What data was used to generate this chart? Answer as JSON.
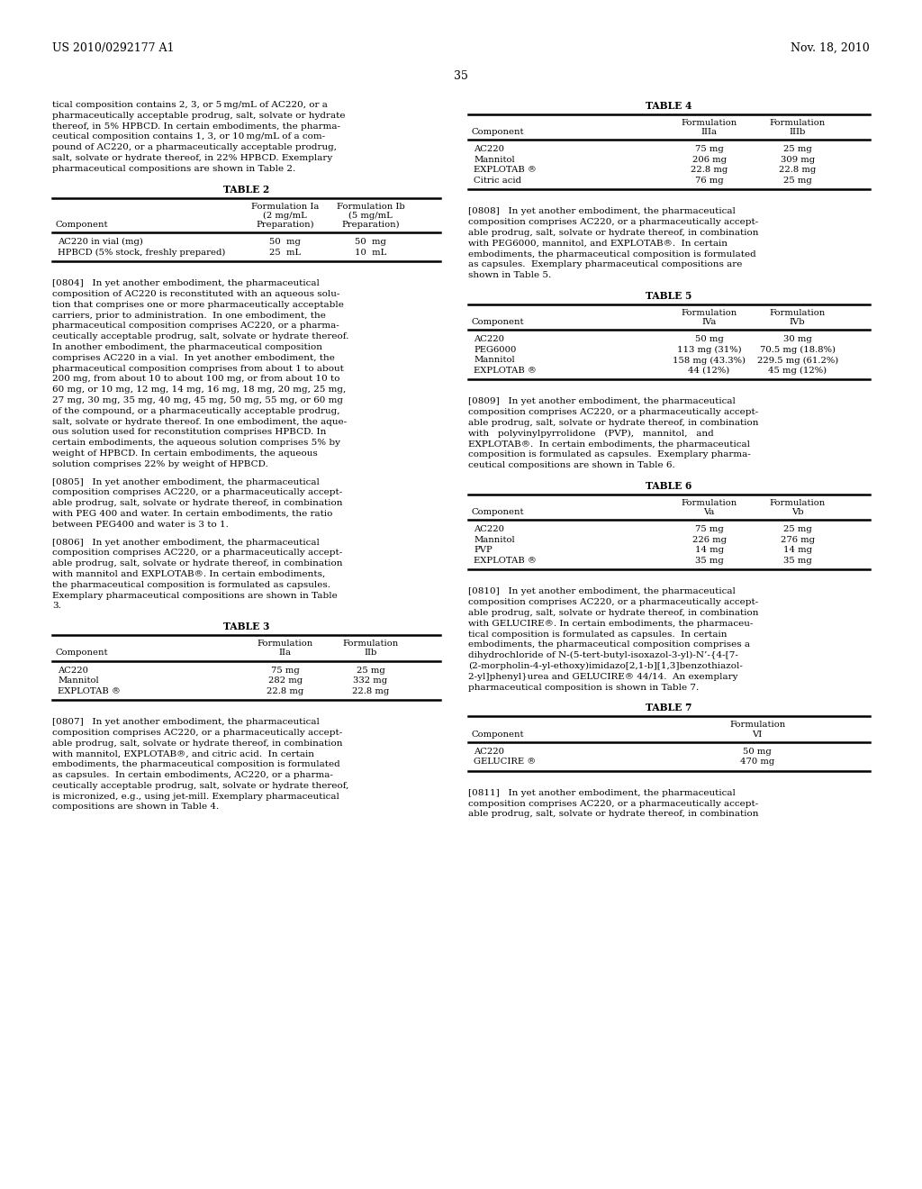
{
  "background_color": "#ffffff",
  "header_left": "US 2010/0292177 A1",
  "header_right": "Nov. 18, 2010",
  "page_number": "35",
  "left_column": {
    "intro_text": [
      "tical composition contains 2, 3, or 5 mg/mL of AC220, or a",
      "pharmaceutically acceptable prodrug, salt, solvate or hydrate",
      "thereof, in 5% HPBCD. In certain embodiments, the pharma-",
      "ceutical composition contains 1, 3, or 10 mg/mL of a com-",
      "pound of AC220, or a pharmaceutically acceptable prodrug,",
      "salt, solvate or hydrate thereof, in 22% HPBCD. Exemplary",
      "pharmaceutical compositions are shown in Table 2."
    ],
    "table2": {
      "title": "TABLE 2",
      "col_headers": [
        "Component",
        "Formulation Ia\n(2 mg/mL\nPreparation)",
        "Formulation Ib\n(5 mg/mL\nPreparation)"
      ],
      "rows": [
        [
          "AC220 in vial (mg)",
          "50  mg",
          "50  mg"
        ],
        [
          "HPBCD (5% stock, freshly prepared)",
          "25  mL",
          "10  mL"
        ]
      ]
    },
    "para_0804": [
      "[0804]   In yet another embodiment, the pharmaceutical",
      "composition of AC220 is reconstituted with an aqueous solu-",
      "tion that comprises one or more pharmaceutically acceptable",
      "carriers, prior to administration.  In one embodiment, the",
      "pharmaceutical composition comprises AC220, or a pharma-",
      "ceutically acceptable prodrug, salt, solvate or hydrate thereof.",
      "In another embodiment, the pharmaceutical composition",
      "comprises AC220 in a vial.  In yet another embodiment, the",
      "pharmaceutical composition comprises from about 1 to about",
      "200 mg, from about 10 to about 100 mg, or from about 10 to",
      "60 mg, or 10 mg, 12 mg, 14 mg, 16 mg, 18 mg, 20 mg, 25 mg,",
      "27 mg, 30 mg, 35 mg, 40 mg, 45 mg, 50 mg, 55 mg, or 60 mg",
      "of the compound, or a pharmaceutically acceptable prodrug,",
      "salt, solvate or hydrate thereof. In one embodiment, the aque-",
      "ous solution used for reconstitution comprises HPBCD. In",
      "certain embodiments, the aqueous solution comprises 5% by",
      "weight of HPBCD. In certain embodiments, the aqueous",
      "solution comprises 22% by weight of HPBCD."
    ],
    "para_0805": [
      "[0805]   In yet another embodiment, the pharmaceutical",
      "composition comprises AC220, or a pharmaceutically accept-",
      "able prodrug, salt, solvate or hydrate thereof, in combination",
      "with PEG 400 and water. In certain embodiments, the ratio",
      "between PEG400 and water is 3 to 1."
    ],
    "para_0806": [
      "[0806]   In yet another embodiment, the pharmaceutical",
      "composition comprises AC220, or a pharmaceutically accept-",
      "able prodrug, salt, solvate or hydrate thereof, in combination",
      "with mannitol and EXPLOTAB®. In certain embodiments,",
      "the pharmaceutical composition is formulated as capsules.",
      "Exemplary pharmaceutical compositions are shown in Table",
      "3."
    ],
    "table3": {
      "title": "TABLE 3",
      "col_headers": [
        "Component",
        "Formulation\nIIa",
        "Formulation\nIIb"
      ],
      "rows": [
        [
          "AC220",
          "75 mg",
          "25 mg"
        ],
        [
          "Mannitol",
          "282 mg",
          "332 mg"
        ],
        [
          "EXPLOTAB ®",
          "22.8 mg",
          "22.8 mg"
        ]
      ]
    },
    "para_0807": [
      "[0807]   In yet another embodiment, the pharmaceutical",
      "composition comprises AC220, or a pharmaceutically accept-",
      "able prodrug, salt, solvate or hydrate thereof, in combination",
      "with mannitol, EXPLOTAB®, and citric acid.  In certain",
      "embodiments, the pharmaceutical composition is formulated",
      "as capsules.  In certain embodiments, AC220, or a pharma-",
      "ceutically acceptable prodrug, salt, solvate or hydrate thereof,",
      "is micronized, e.g., using jet-mill. Exemplary pharmaceutical",
      "compositions are shown in Table 4."
    ]
  },
  "right_column": {
    "table4": {
      "title": "TABLE 4",
      "col_headers": [
        "Component",
        "Formulation\nIIIa",
        "Formulation\nIIIb"
      ],
      "rows": [
        [
          "AC220",
          "75 mg",
          "25 mg"
        ],
        [
          "Mannitol",
          "206 mg",
          "309 mg"
        ],
        [
          "EXPLOTAB ®",
          "22.8 mg",
          "22.8 mg"
        ],
        [
          "Citric acid",
          "76 mg",
          "25 mg"
        ]
      ]
    },
    "para_0808": [
      "[0808]   In yet another embodiment, the pharmaceutical",
      "composition comprises AC220, or a pharmaceutically accept-",
      "able prodrug, salt, solvate or hydrate thereof, in combination",
      "with PEG6000, mannitol, and EXPLOTAB®.  In certain",
      "embodiments, the pharmaceutical composition is formulated",
      "as capsules.  Exemplary pharmaceutical compositions are",
      "shown in Table 5."
    ],
    "table5": {
      "title": "TABLE 5",
      "col_headers": [
        "Component",
        "Formulation\nIVa",
        "Formulation\nIVb"
      ],
      "rows": [
        [
          "AC220",
          "50 mg",
          "30 mg"
        ],
        [
          "PEG6000",
          "113 mg (31%)",
          "70.5 mg (18.8%)"
        ],
        [
          "Mannitol",
          "158 mg (43.3%)",
          "229.5 mg (61.2%)"
        ],
        [
          "EXPLOTAB ®",
          "44 (12%)",
          "45 mg (12%)"
        ]
      ]
    },
    "para_0809": [
      "[0809]   In yet another embodiment, the pharmaceutical",
      "composition comprises AC220, or a pharmaceutically accept-",
      "able prodrug, salt, solvate or hydrate thereof, in combination",
      "with   polyvinylpyrrolidone   (PVP),   mannitol,   and",
      "EXPLOTAB®.  In certain embodiments, the pharmaceutical",
      "composition is formulated as capsules.  Exemplary pharma-",
      "ceutical compositions are shown in Table 6."
    ],
    "table6": {
      "title": "TABLE 6",
      "col_headers": [
        "Component",
        "Formulation\nVa",
        "Formulation\nVb"
      ],
      "rows": [
        [
          "AC220",
          "75 mg",
          "25 mg"
        ],
        [
          "Mannitol",
          "226 mg",
          "276 mg"
        ],
        [
          "PVP",
          "14 mg",
          "14 mg"
        ],
        [
          "EXPLOTAB ®",
          "35 mg",
          "35 mg"
        ]
      ]
    },
    "para_0810": [
      "[0810]   In yet another embodiment, the pharmaceutical",
      "composition comprises AC220, or a pharmaceutically accept-",
      "able prodrug, salt, solvate or hydrate thereof, in combination",
      "with GELUCIRE®. In certain embodiments, the pharmaceu-",
      "tical composition is formulated as capsules.  In certain",
      "embodiments, the pharmaceutical composition comprises a",
      "dihydrochloride of N-(5-tert-butyl-isoxazol-3-yl)-N’-{4-[7-",
      "(2-morpholin-4-yl-ethoxy)imidazo[2,1-b][1,3]benzothiazol-",
      "2-yl]phenyl}urea and GELUCIRE® 44/14.  An exemplary",
      "pharmaceutical composition is shown in Table 7."
    ],
    "table7": {
      "title": "TABLE 7",
      "col_headers": [
        "Component",
        "Formulation\nVI"
      ],
      "rows": [
        [
          "AC220",
          "50 mg"
        ],
        [
          "GELUCIRE ®",
          "470 mg"
        ]
      ]
    },
    "para_0811": [
      "[0811]   In yet another embodiment, the pharmaceutical",
      "composition comprises AC220, or a pharmaceutically accept-",
      "able prodrug, salt, solvate or hydrate thereof, in combination"
    ]
  }
}
